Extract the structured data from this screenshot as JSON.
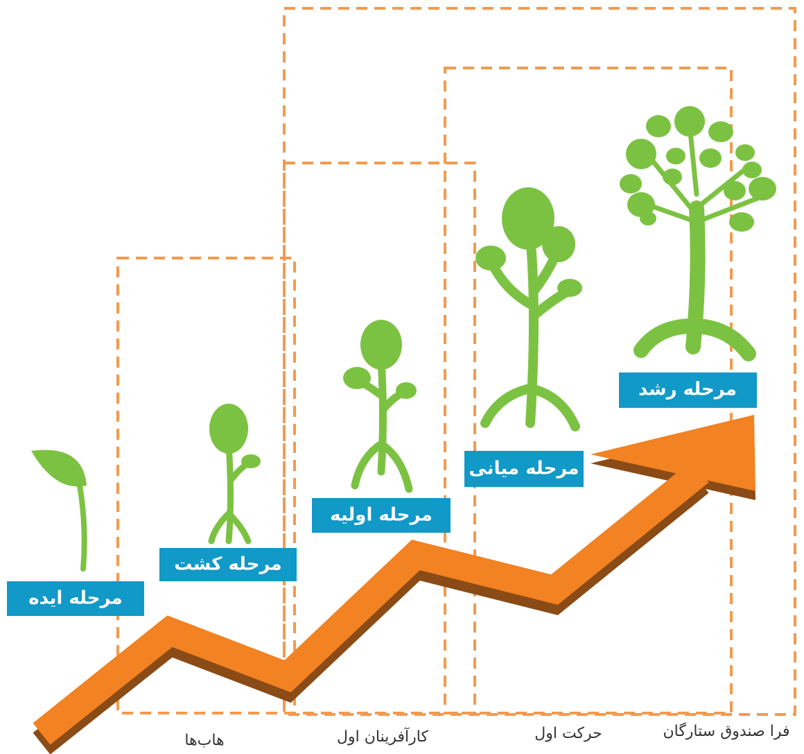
{
  "stages": [
    {
      "label": "مرحله ایده"
    },
    {
      "label": "مرحله کشت"
    },
    {
      "label": "مرحله اولیه"
    },
    {
      "label": "مرحله میانی"
    },
    {
      "label": "مرحله رشد"
    }
  ],
  "groups": [
    {
      "label": "هاب‌ها"
    },
    {
      "label": "کارآفرینان اول"
    },
    {
      "label": "حرکت اول"
    },
    {
      "label": "فرا صندوق ستارگان"
    }
  ]
}
